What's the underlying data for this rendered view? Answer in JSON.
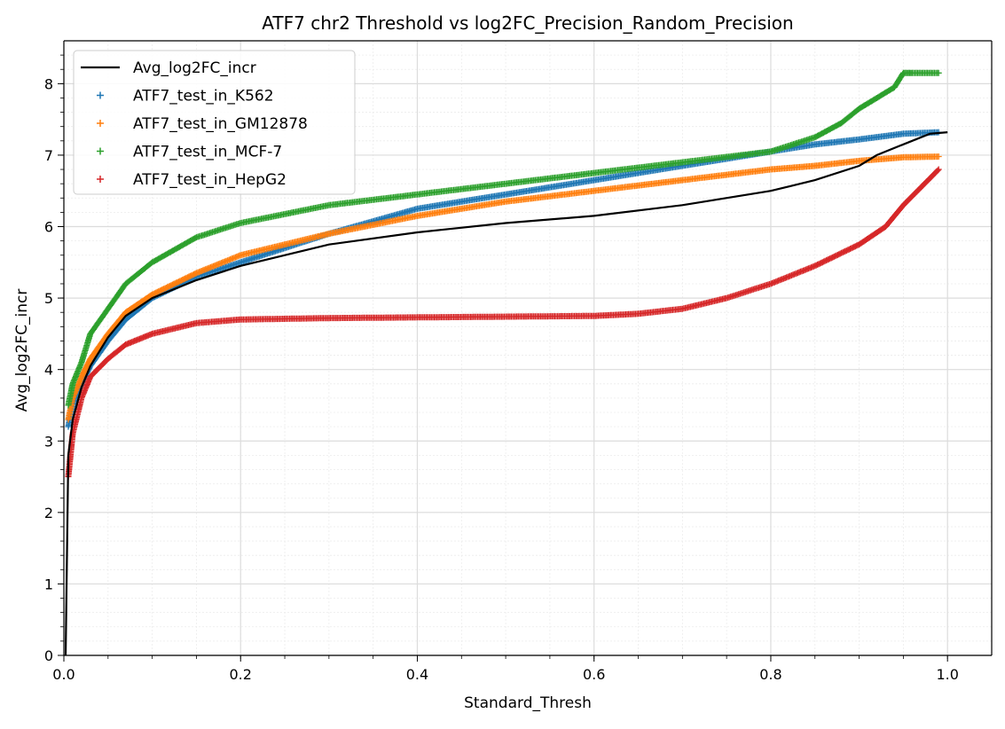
{
  "chart_data": {
    "type": "line",
    "title": "ATF7 chr2 Threshold vs log2FC_Precision_Random_Precision",
    "xlabel": "Standard_Thresh",
    "ylabel": "Avg_log2FC_incr",
    "xlim": [
      0,
      1.05
    ],
    "ylim": [
      0,
      8.6
    ],
    "x_ticks": [
      "0.0",
      "0.2",
      "0.4",
      "0.6",
      "0.8",
      "1.0"
    ],
    "y_ticks": [
      "0",
      "1",
      "2",
      "3",
      "4",
      "5",
      "6",
      "7",
      "8"
    ],
    "grid": true,
    "minor_grid": true,
    "legend_position": "upper-left",
    "line_series": [
      {
        "name": "Avg_log2FC_incr",
        "color": "#000000",
        "x": [
          0.002,
          0.005,
          0.01,
          0.02,
          0.03,
          0.05,
          0.07,
          0.1,
          0.15,
          0.2,
          0.3,
          0.4,
          0.5,
          0.6,
          0.7,
          0.8,
          0.85,
          0.9,
          0.92,
          0.95,
          0.98,
          1.0
        ],
        "y": [
          0.0,
          2.8,
          3.3,
          3.75,
          4.05,
          4.45,
          4.75,
          5.0,
          5.25,
          5.45,
          5.75,
          5.92,
          6.05,
          6.15,
          6.3,
          6.5,
          6.65,
          6.85,
          7.0,
          7.15,
          7.3,
          7.32
        ]
      }
    ],
    "scatter_series": [
      {
        "name": "ATF7_test_in_K562",
        "color": "#1f77b4",
        "marker": "+",
        "x": [
          0.005,
          0.01,
          0.02,
          0.03,
          0.05,
          0.07,
          0.1,
          0.15,
          0.2,
          0.3,
          0.4,
          0.5,
          0.6,
          0.7,
          0.8,
          0.85,
          0.9,
          0.95,
          0.99
        ],
        "y": [
          3.2,
          3.5,
          3.8,
          4.05,
          4.4,
          4.7,
          5.0,
          5.3,
          5.5,
          5.9,
          6.25,
          6.45,
          6.65,
          6.85,
          7.05,
          7.15,
          7.22,
          7.3,
          7.32
        ]
      },
      {
        "name": "ATF7_test_in_GM12878",
        "color": "#ff7f0e",
        "marker": "+",
        "x": [
          0.005,
          0.01,
          0.02,
          0.03,
          0.05,
          0.07,
          0.1,
          0.15,
          0.2,
          0.3,
          0.4,
          0.5,
          0.6,
          0.7,
          0.8,
          0.85,
          0.9,
          0.95,
          0.99
        ],
        "y": [
          3.3,
          3.6,
          3.9,
          4.15,
          4.5,
          4.8,
          5.05,
          5.35,
          5.6,
          5.9,
          6.15,
          6.35,
          6.5,
          6.65,
          6.8,
          6.85,
          6.92,
          6.97,
          6.98
        ]
      },
      {
        "name": "ATF7_test_in_MCF-7",
        "color": "#2ca02c",
        "marker": "+",
        "x": [
          0.005,
          0.01,
          0.02,
          0.03,
          0.05,
          0.07,
          0.1,
          0.15,
          0.2,
          0.3,
          0.4,
          0.5,
          0.6,
          0.7,
          0.8,
          0.85,
          0.88,
          0.9,
          0.92,
          0.94,
          0.95,
          0.96,
          0.99
        ],
        "y": [
          3.5,
          3.8,
          4.1,
          4.5,
          4.85,
          5.2,
          5.5,
          5.85,
          6.05,
          6.3,
          6.45,
          6.6,
          6.75,
          6.9,
          7.05,
          7.25,
          7.45,
          7.65,
          7.8,
          7.95,
          8.15,
          8.15,
          8.15
        ]
      },
      {
        "name": "ATF7_test_in_HepG2",
        "color": "#d62728",
        "marker": "+",
        "x": [
          0.005,
          0.01,
          0.02,
          0.03,
          0.05,
          0.07,
          0.1,
          0.15,
          0.2,
          0.3,
          0.4,
          0.5,
          0.6,
          0.65,
          0.7,
          0.75,
          0.8,
          0.85,
          0.9,
          0.93,
          0.95,
          0.97,
          0.99
        ],
        "y": [
          2.5,
          3.1,
          3.6,
          3.9,
          4.15,
          4.35,
          4.5,
          4.65,
          4.7,
          4.72,
          4.73,
          4.74,
          4.75,
          4.78,
          4.85,
          5.0,
          5.2,
          5.45,
          5.75,
          6.0,
          6.3,
          6.55,
          6.8
        ]
      }
    ]
  }
}
